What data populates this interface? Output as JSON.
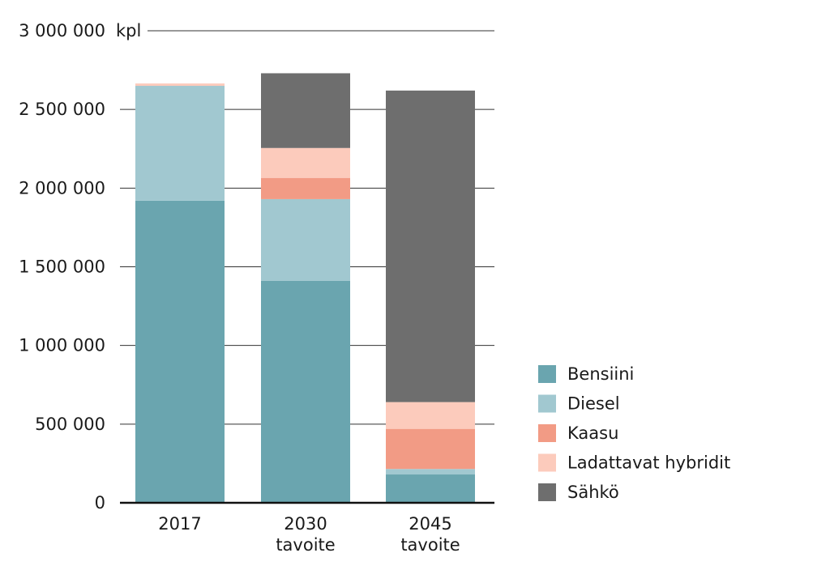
{
  "chart_data": {
    "type": "bar",
    "stacked": true,
    "unit": "kpl",
    "categories": [
      {
        "line1": "2017",
        "line2": ""
      },
      {
        "line1": "2030",
        "line2": "tavoite"
      },
      {
        "line1": "2045",
        "line2": "tavoite"
      }
    ],
    "ylim": [
      0,
      3000000
    ],
    "yticks": [
      {
        "value": 0,
        "label": "0"
      },
      {
        "value": 500000,
        "label": "500 000"
      },
      {
        "value": 1000000,
        "label": "1 000 000"
      },
      {
        "value": 1500000,
        "label": "1 500 000"
      },
      {
        "value": 2000000,
        "label": "2 000 000"
      },
      {
        "value": 2500000,
        "label": "2 500 000"
      },
      {
        "value": 3000000,
        "label": "3 000 000"
      }
    ],
    "grid": true,
    "legend_position": "right",
    "series": [
      {
        "name": "Bensiini",
        "color": "#6aa5af",
        "values": [
          1920000,
          1410000,
          180000
        ]
      },
      {
        "name": "Diesel",
        "color": "#a1c8d0",
        "values": [
          730000,
          520000,
          35000
        ]
      },
      {
        "name": "Kaasu",
        "color": "#f29b85",
        "values": [
          0,
          135000,
          255000
        ]
      },
      {
        "name": "Ladattavat hybridit",
        "color": "#fccbbc",
        "values": [
          15000,
          190000,
          170000
        ]
      },
      {
        "name": "Sähkö",
        "color": "#6e6e6e",
        "values": [
          0,
          475000,
          1980000
        ]
      }
    ]
  }
}
